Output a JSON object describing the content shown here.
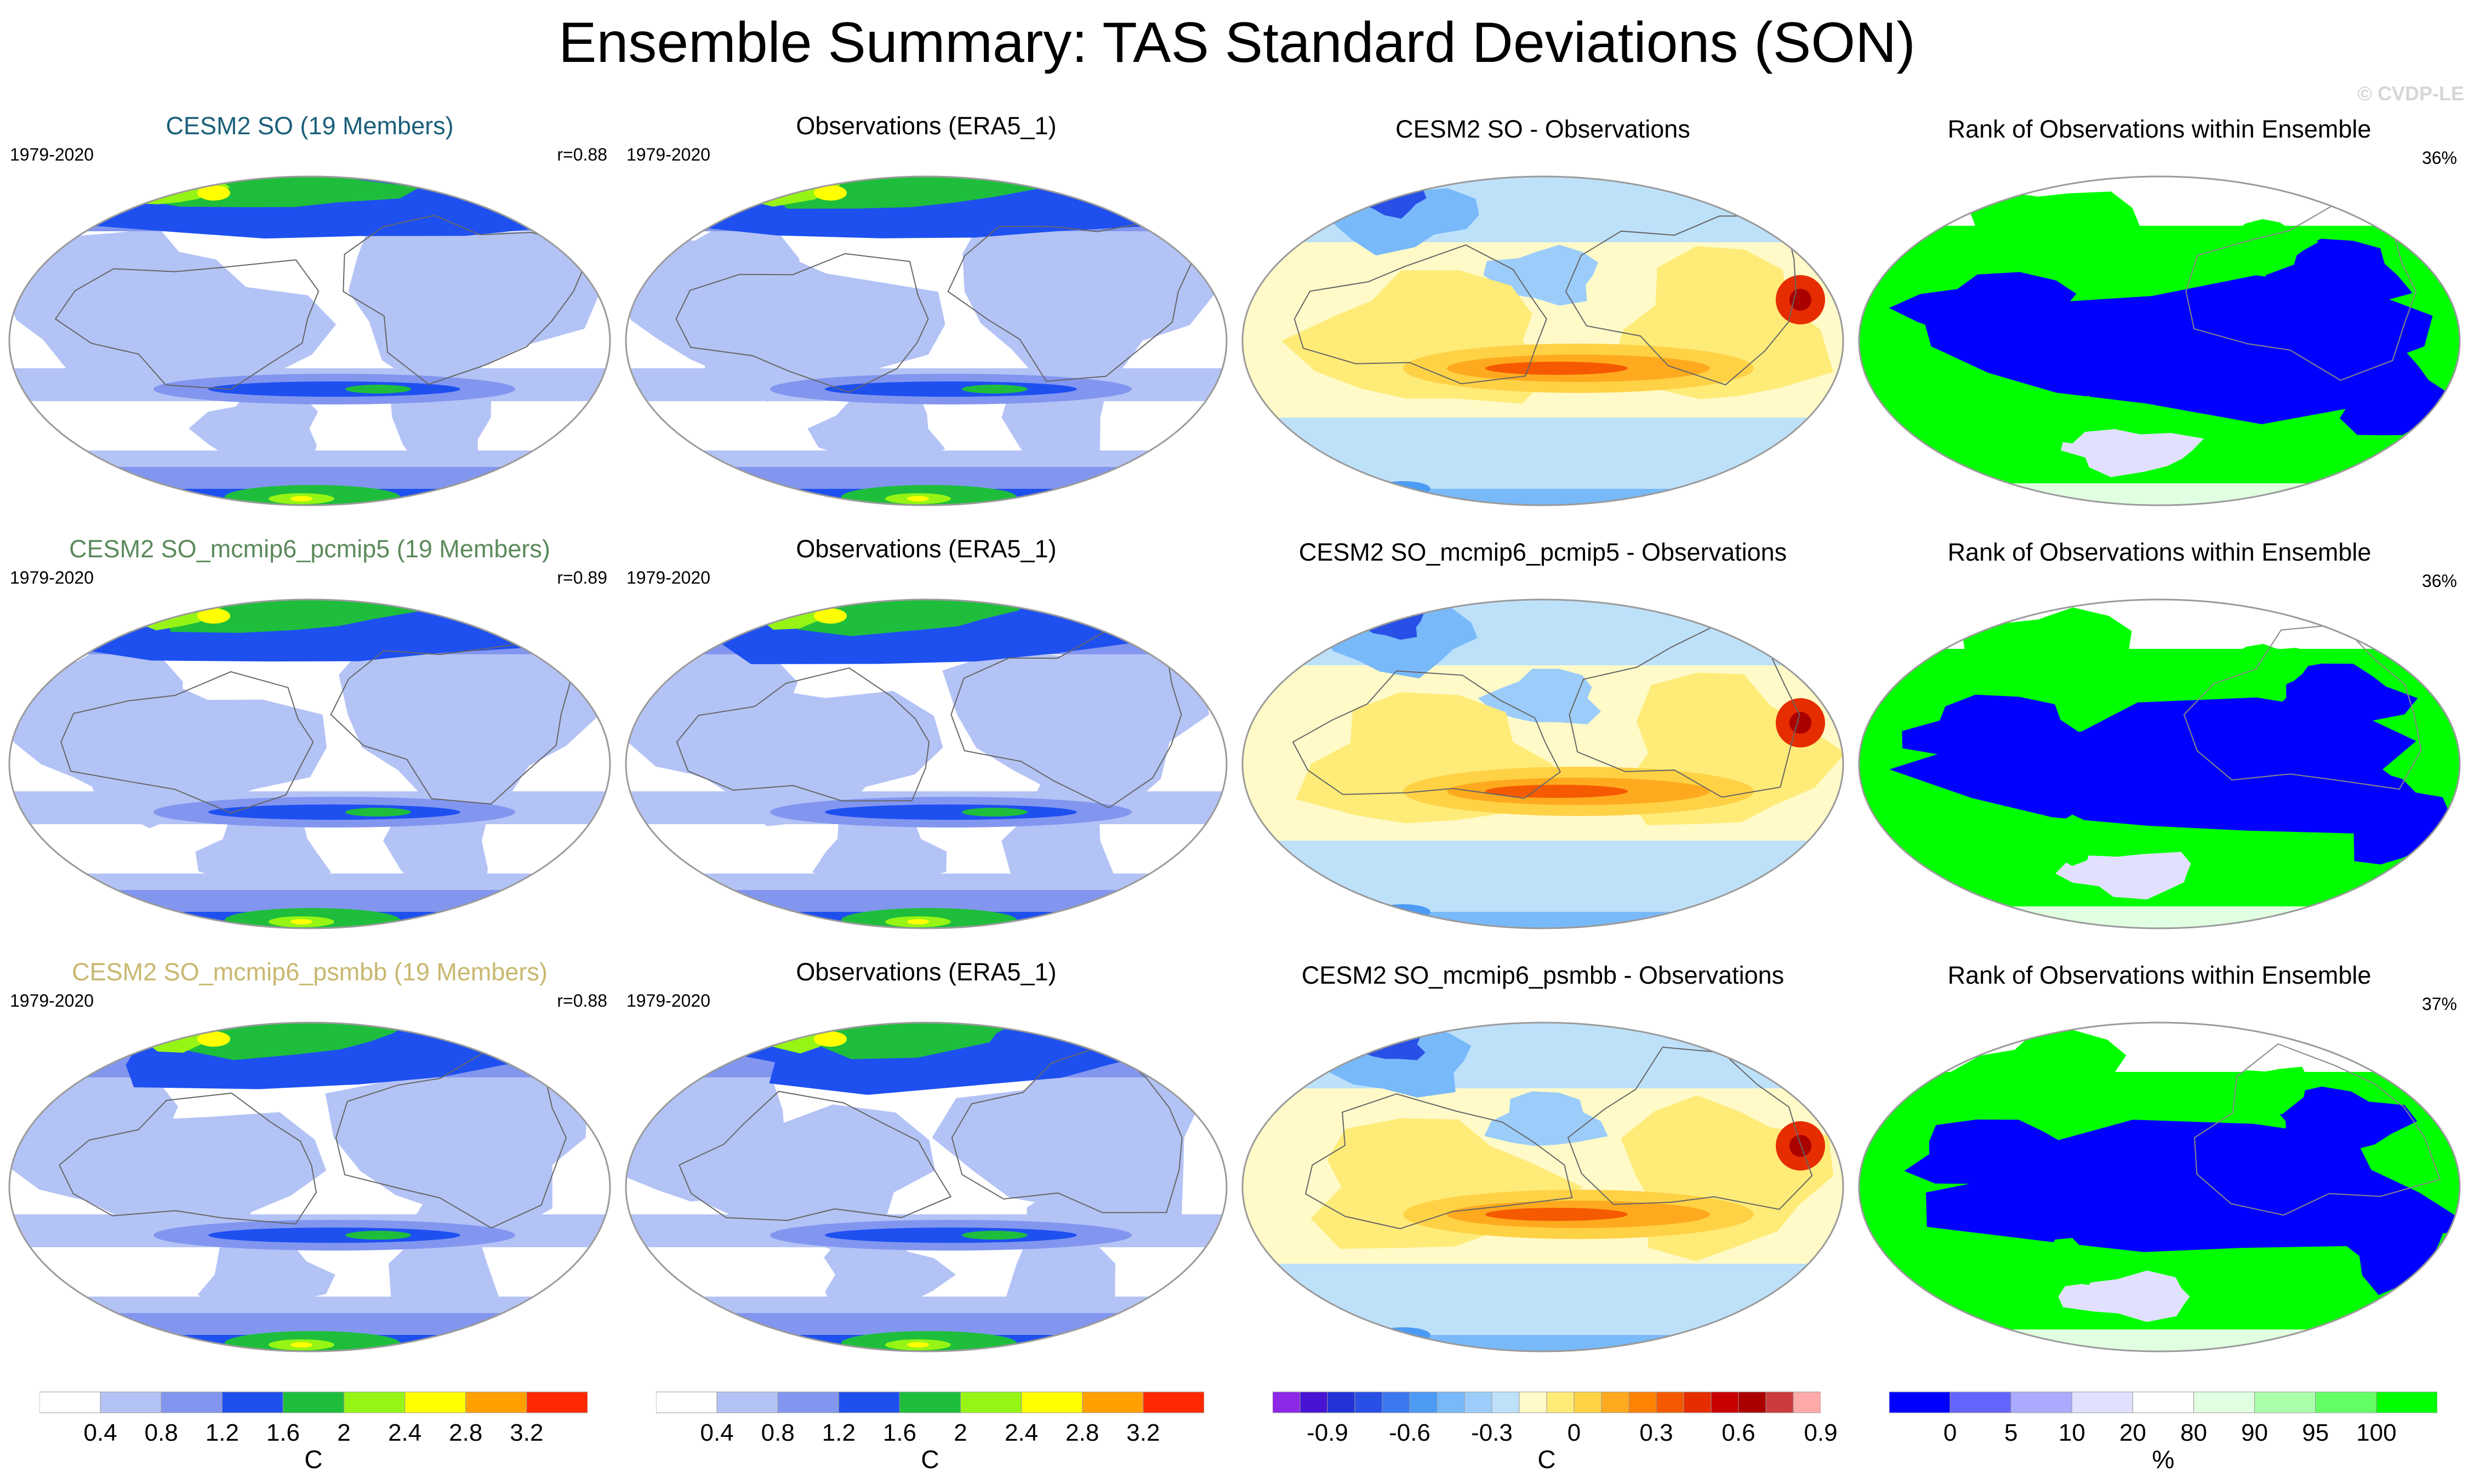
{
  "title": "Ensemble Summary: TAS Standard Deviations (SON)",
  "watermark": "© CVDP-LE",
  "rows": [
    {
      "model": {
        "title": "CESM2 SO (19 Members)",
        "title_color": "#1b5f7a",
        "period": "1979-2020",
        "corr": "r=0.88"
      },
      "obs": {
        "title": "Observations (ERA5_1)",
        "period": "1979-2020"
      },
      "diff": {
        "title": "CESM2 SO - Observations"
      },
      "rank": {
        "title": "Rank of Observations within Ensemble",
        "pct": "36%"
      }
    },
    {
      "model": {
        "title": "CESM2 SO_mcmip6_pcmip5 (19 Members)",
        "title_color": "#5c8a5c",
        "period": "1979-2020",
        "corr": "r=0.89"
      },
      "obs": {
        "title": "Observations (ERA5_1)",
        "period": "1979-2020"
      },
      "diff": {
        "title": "CESM2 SO_mcmip6_pcmip5 - Observations"
      },
      "rank": {
        "title": "Rank of Observations within Ensemble",
        "pct": "36%"
      }
    },
    {
      "model": {
        "title": "CESM2 SO_mcmip6_psmbb (19 Members)",
        "title_color": "#c8b870",
        "period": "1979-2020",
        "corr": "r=0.88"
      },
      "obs": {
        "title": "Observations (ERA5_1)",
        "period": "1979-2020"
      },
      "diff": {
        "title": "CESM2 SO_mcmip6_psmbb - Observations"
      },
      "rank": {
        "title": "Rank of Observations within Ensemble",
        "pct": "37%"
      }
    }
  ],
  "colorbars": {
    "std": {
      "unit": "C",
      "labels": [
        "0.4",
        "0.8",
        "1.2",
        "1.6",
        "2",
        "2.4",
        "2.8",
        "3.2"
      ],
      "colors": [
        "#ffffff",
        "#b4c3f5",
        "#8296f0",
        "#1e50f0",
        "#1ebe3c",
        "#96f514",
        "#ffff00",
        "#ffa000",
        "#ff2800"
      ]
    },
    "diff": {
      "unit": "C",
      "labels": [
        "-0.9",
        "-0.6",
        "-0.3",
        "0",
        "0.3",
        "0.6",
        "0.9"
      ],
      "colors": [
        "#8c28e6",
        "#4614d2",
        "#2332d7",
        "#2850e6",
        "#3c78f0",
        "#4b9bf5",
        "#78b9fa",
        "#9ccdfa",
        "#bee1fa",
        "#fffac8",
        "#ffeb78",
        "#ffd246",
        "#ffaa1e",
        "#ff8200",
        "#f55a00",
        "#e62d00",
        "#c80000",
        "#aa0000",
        "#cc3c3c",
        "#ffaaaa"
      ]
    },
    "rank": {
      "unit": "%",
      "labels": [
        "0",
        "5",
        "10",
        "20",
        "80",
        "90",
        "95",
        "100"
      ],
      "colors": [
        "#0000ff",
        "#6464ff",
        "#aaaaff",
        "#e1e1ff",
        "#ffffff",
        "#e1ffe1",
        "#aaffaa",
        "#64ff64",
        "#00ff00"
      ]
    }
  },
  "chart_data": [
    {
      "type": "heatmap",
      "title": "Ensemble Summary: TAS Standard Deviations (SON)",
      "panels": "4 columns x 3 rows, Robinson-style global maps",
      "columns": [
        "ensemble mean TAS standard deviation",
        "observed TAS standard deviation (ERA5_1)",
        "model minus observations",
        "rank of observations within ensemble"
      ],
      "period": "1979-2020",
      "correlations": [
        0.88,
        0.89,
        0.88
      ],
      "rank_percent": [
        36,
        36,
        37
      ]
    }
  ]
}
